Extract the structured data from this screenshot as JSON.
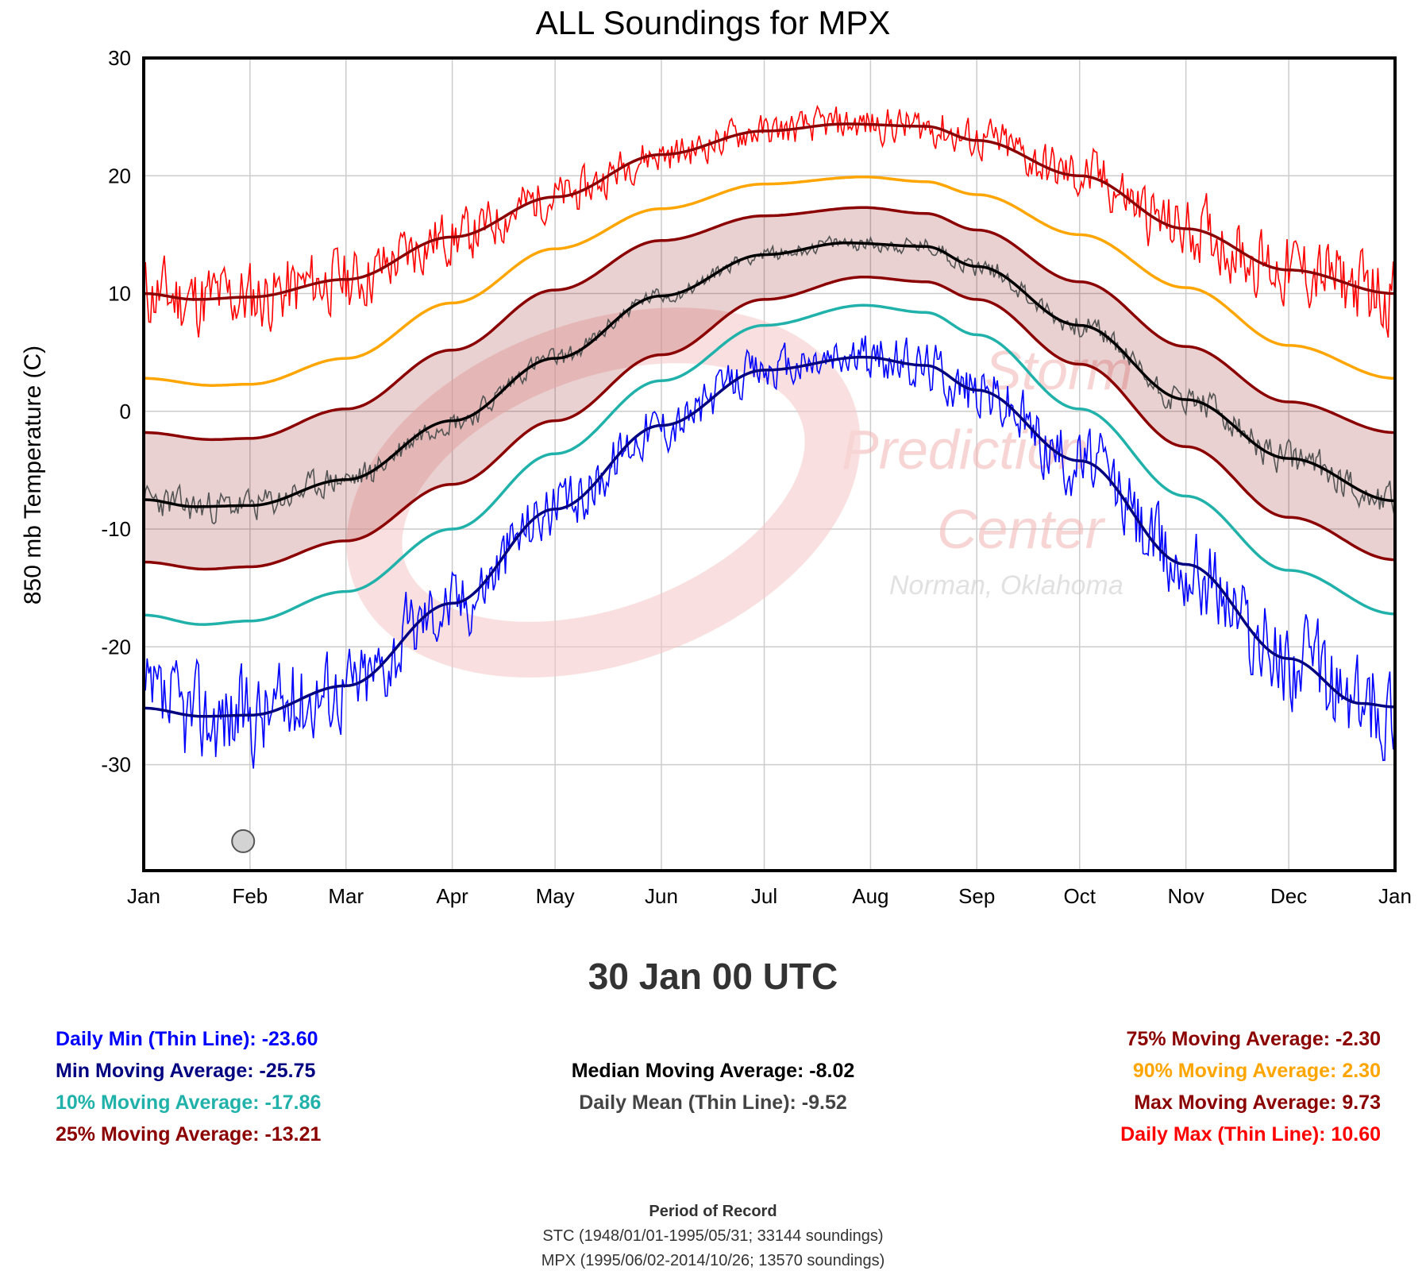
{
  "chart_data": {
    "type": "line",
    "title": "ALL Soundings for MPX",
    "ylabel": "850 mb Temperature (C)",
    "ylim": [
      -39,
      30
    ],
    "yticks": [
      30,
      20,
      10,
      0,
      -10,
      -20,
      -30
    ],
    "xlim": [
      0,
      365
    ],
    "xticks": [
      {
        "label": "Jan",
        "day": 0
      },
      {
        "label": "Feb",
        "day": 31
      },
      {
        "label": "Mar",
        "day": 59
      },
      {
        "label": "Apr",
        "day": 90
      },
      {
        "label": "May",
        "day": 120
      },
      {
        "label": "Jun",
        "day": 151
      },
      {
        "label": "Jul",
        "day": 181
      },
      {
        "label": "Aug",
        "day": 212
      },
      {
        "label": "Sep",
        "day": 243
      },
      {
        "label": "Oct",
        "day": 273
      },
      {
        "label": "Nov",
        "day": 304
      },
      {
        "label": "Dec",
        "day": 334
      },
      {
        "label": "Jan",
        "day": 365
      }
    ],
    "grid": true,
    "x_unit": "day of year",
    "smooth_series": [
      {
        "name": "Max Moving Average",
        "color": "#8b0000",
        "points": [
          [
            0,
            10
          ],
          [
            15,
            9.5
          ],
          [
            31,
            9.7
          ],
          [
            59,
            11.2
          ],
          [
            90,
            14.8
          ],
          [
            120,
            18.2
          ],
          [
            151,
            21.8
          ],
          [
            181,
            23.8
          ],
          [
            205,
            24.4
          ],
          [
            228,
            24.2
          ],
          [
            243,
            23
          ],
          [
            273,
            20
          ],
          [
            304,
            15.5
          ],
          [
            334,
            12
          ],
          [
            365,
            10
          ]
        ]
      },
      {
        "name": "90% Moving Average",
        "color": "#ffa500",
        "points": [
          [
            0,
            2.8
          ],
          [
            20,
            2.2
          ],
          [
            31,
            2.3
          ],
          [
            59,
            4.5
          ],
          [
            90,
            9.2
          ],
          [
            120,
            13.8
          ],
          [
            151,
            17.2
          ],
          [
            181,
            19.3
          ],
          [
            210,
            19.9
          ],
          [
            228,
            19.5
          ],
          [
            243,
            18.4
          ],
          [
            273,
            15
          ],
          [
            304,
            10.5
          ],
          [
            334,
            5.6
          ],
          [
            365,
            2.8
          ]
        ]
      },
      {
        "name": "75% Moving Average",
        "color": "#8b0000",
        "points": [
          [
            0,
            -1.8
          ],
          [
            20,
            -2.4
          ],
          [
            31,
            -2.3
          ],
          [
            59,
            0.2
          ],
          [
            90,
            5.2
          ],
          [
            120,
            10.3
          ],
          [
            151,
            14.5
          ],
          [
            181,
            16.6
          ],
          [
            210,
            17.3
          ],
          [
            228,
            16.8
          ],
          [
            243,
            15.4
          ],
          [
            273,
            11
          ],
          [
            304,
            5.5
          ],
          [
            334,
            0.8
          ],
          [
            365,
            -1.8
          ]
        ]
      },
      {
        "name": "Median Moving Average",
        "color": "#000000",
        "points": [
          [
            0,
            -7.5
          ],
          [
            15,
            -8.1
          ],
          [
            31,
            -8
          ],
          [
            59,
            -5.8
          ],
          [
            90,
            -0.8
          ],
          [
            120,
            4.5
          ],
          [
            151,
            9.8
          ],
          [
            181,
            13.3
          ],
          [
            205,
            14.3
          ],
          [
            228,
            14
          ],
          [
            243,
            12.3
          ],
          [
            273,
            7.3
          ],
          [
            304,
            1
          ],
          [
            334,
            -4
          ],
          [
            365,
            -7.6
          ]
        ]
      },
      {
        "name": "25% Moving Average",
        "color": "#8b0000",
        "points": [
          [
            0,
            -12.8
          ],
          [
            18,
            -13.4
          ],
          [
            31,
            -13.2
          ],
          [
            59,
            -11
          ],
          [
            90,
            -6.2
          ],
          [
            120,
            -0.8
          ],
          [
            151,
            4.8
          ],
          [
            181,
            9.5
          ],
          [
            210,
            11.4
          ],
          [
            228,
            11
          ],
          [
            243,
            9.5
          ],
          [
            273,
            4
          ],
          [
            304,
            -3
          ],
          [
            334,
            -9
          ],
          [
            365,
            -12.6
          ]
        ]
      },
      {
        "name": "10% Moving Average",
        "color": "#20b2aa",
        "points": [
          [
            0,
            -17.3
          ],
          [
            17,
            -18.1
          ],
          [
            31,
            -17.8
          ],
          [
            59,
            -15.3
          ],
          [
            90,
            -10
          ],
          [
            120,
            -3.6
          ],
          [
            151,
            2.6
          ],
          [
            181,
            7.3
          ],
          [
            210,
            9
          ],
          [
            228,
            8.4
          ],
          [
            243,
            6.5
          ],
          [
            273,
            0.2
          ],
          [
            304,
            -7.2
          ],
          [
            334,
            -13.5
          ],
          [
            365,
            -17.2
          ]
        ]
      },
      {
        "name": "Min Moving Average",
        "color": "#000080",
        "points": [
          [
            0,
            -25.2
          ],
          [
            17,
            -25.9
          ],
          [
            31,
            -25.8
          ],
          [
            59,
            -23.3
          ],
          [
            90,
            -16.3
          ],
          [
            120,
            -8.3
          ],
          [
            151,
            -1.2
          ],
          [
            181,
            3.5
          ],
          [
            210,
            4.6
          ],
          [
            228,
            3.9
          ],
          [
            243,
            1.8
          ],
          [
            273,
            -4.2
          ],
          [
            304,
            -13
          ],
          [
            334,
            -21
          ],
          [
            355,
            -24.8
          ],
          [
            365,
            -25.1
          ]
        ]
      }
    ],
    "daily_series": [
      {
        "name": "Daily Max (Thin Line)",
        "color": "#ff0000",
        "base": "Max Moving Average",
        "amp": 3.2,
        "seed": 11
      },
      {
        "name": "Daily Mean (Thin Line)",
        "color": "#555555",
        "base": "Median Moving Average",
        "amp": 1.4,
        "seed": 23
      },
      {
        "name": "Daily Min (Thin Line)",
        "color": "#0000ff",
        "base": "Min Moving Average",
        "amp": 4.2,
        "seed": 37
      }
    ],
    "band": {
      "between": [
        "25% Moving Average",
        "75% Moving Average"
      ],
      "color": "#8b0000",
      "opacity": 0.18
    },
    "marker": {
      "day": 29,
      "value": -36.5
    }
  },
  "selected_time": "30 Jan 00 UTC",
  "stats_left": [
    {
      "text": "Daily Min (Thin Line): -23.60",
      "color": "#0000ff"
    },
    {
      "text": "Min Moving Average: -25.75",
      "color": "#000080"
    },
    {
      "text": "10% Moving Average: -17.86",
      "color": "#20b2aa"
    },
    {
      "text": "25% Moving Average: -13.21",
      "color": "#8b0000"
    }
  ],
  "stats_center": [
    {
      "text": "Median Moving Average: -8.02",
      "color": "#000000"
    },
    {
      "text": "Daily Mean (Thin Line): -9.52",
      "color": "#444444"
    }
  ],
  "stats_right": [
    {
      "text": "75% Moving Average: -2.30",
      "color": "#8b0000"
    },
    {
      "text": "90% Moving Average: 2.30",
      "color": "#ffa500"
    },
    {
      "text": "Max Moving Average: 9.73",
      "color": "#8b0000"
    },
    {
      "text": "Daily Max (Thin Line): 10.60",
      "color": "#ff0000"
    }
  ],
  "period_of_record": {
    "title": "Period of Record",
    "lines": [
      "STC (1948/01/01-1995/05/31; 33144 soundings)",
      "MPX (1995/06/02-2014/10/26; 13570 soundings)"
    ]
  },
  "watermark": {
    "lines": [
      "Storm",
      "Prediction",
      "Center",
      "Norman, Oklahoma"
    ]
  }
}
